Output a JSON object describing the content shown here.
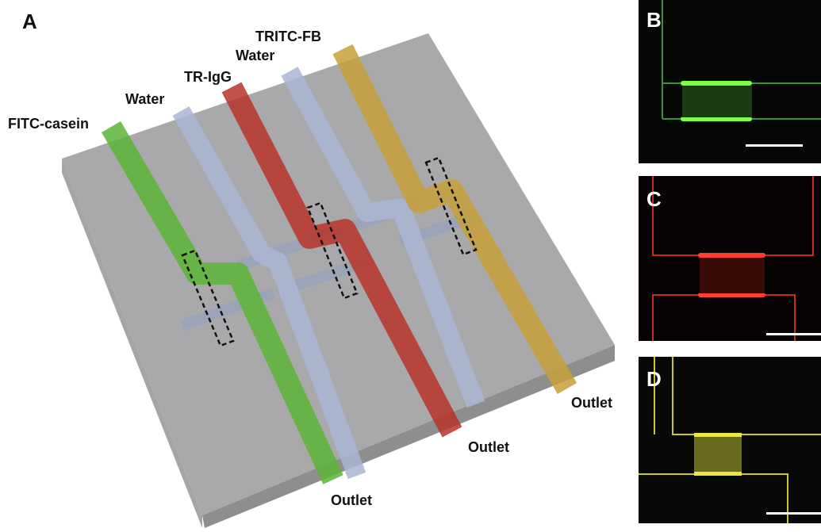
{
  "panel_a": {
    "label": "A",
    "inlets": [
      "FITC-casein",
      "Water",
      "TR-IgG",
      "Water",
      "TRITC-FB"
    ],
    "outlets": [
      "Outlet",
      "Outlet",
      "Outlet"
    ]
  },
  "panels": [
    "B",
    "C",
    "D"
  ]
}
